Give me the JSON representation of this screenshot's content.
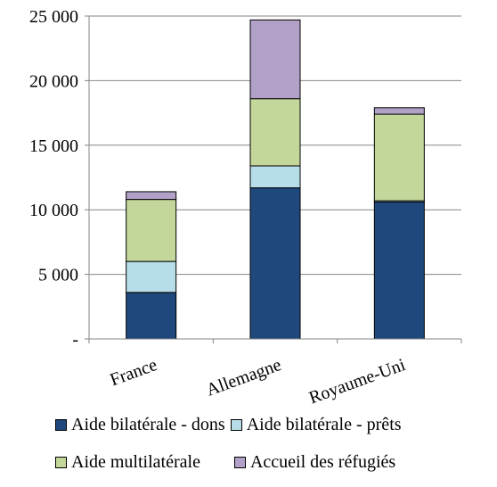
{
  "chart_data": {
    "type": "bar",
    "stacked": true,
    "categories": [
      "France",
      "Allemagne",
      "Royaume-Uni"
    ],
    "series": [
      {
        "name": "Aide bilatérale - dons",
        "values": [
          3600,
          11700,
          10600
        ],
        "color": "#1f497d"
      },
      {
        "name": "Aide bilatérale - prêts",
        "values": [
          2400,
          1700,
          100
        ],
        "color": "#b7dee8"
      },
      {
        "name": "Aide multilatérale",
        "values": [
          4800,
          5200,
          6700
        ],
        "color": "#c4d79b"
      },
      {
        "name": "Accueil des réfugiés",
        "values": [
          600,
          6100,
          500
        ],
        "color": "#b2a1c7"
      }
    ],
    "ylim": [
      0,
      25000
    ],
    "yticks": [
      {
        "value": 0,
        "label": "-"
      },
      {
        "value": 5000,
        "label": "5 000"
      },
      {
        "value": 10000,
        "label": "10 000"
      },
      {
        "value": 15000,
        "label": "15 000"
      },
      {
        "value": 20000,
        "label": "20 000"
      },
      {
        "value": 25000,
        "label": "25 000"
      }
    ],
    "grid": true,
    "legend_position": "bottom",
    "title": "",
    "xlabel": "",
    "ylabel": ""
  }
}
